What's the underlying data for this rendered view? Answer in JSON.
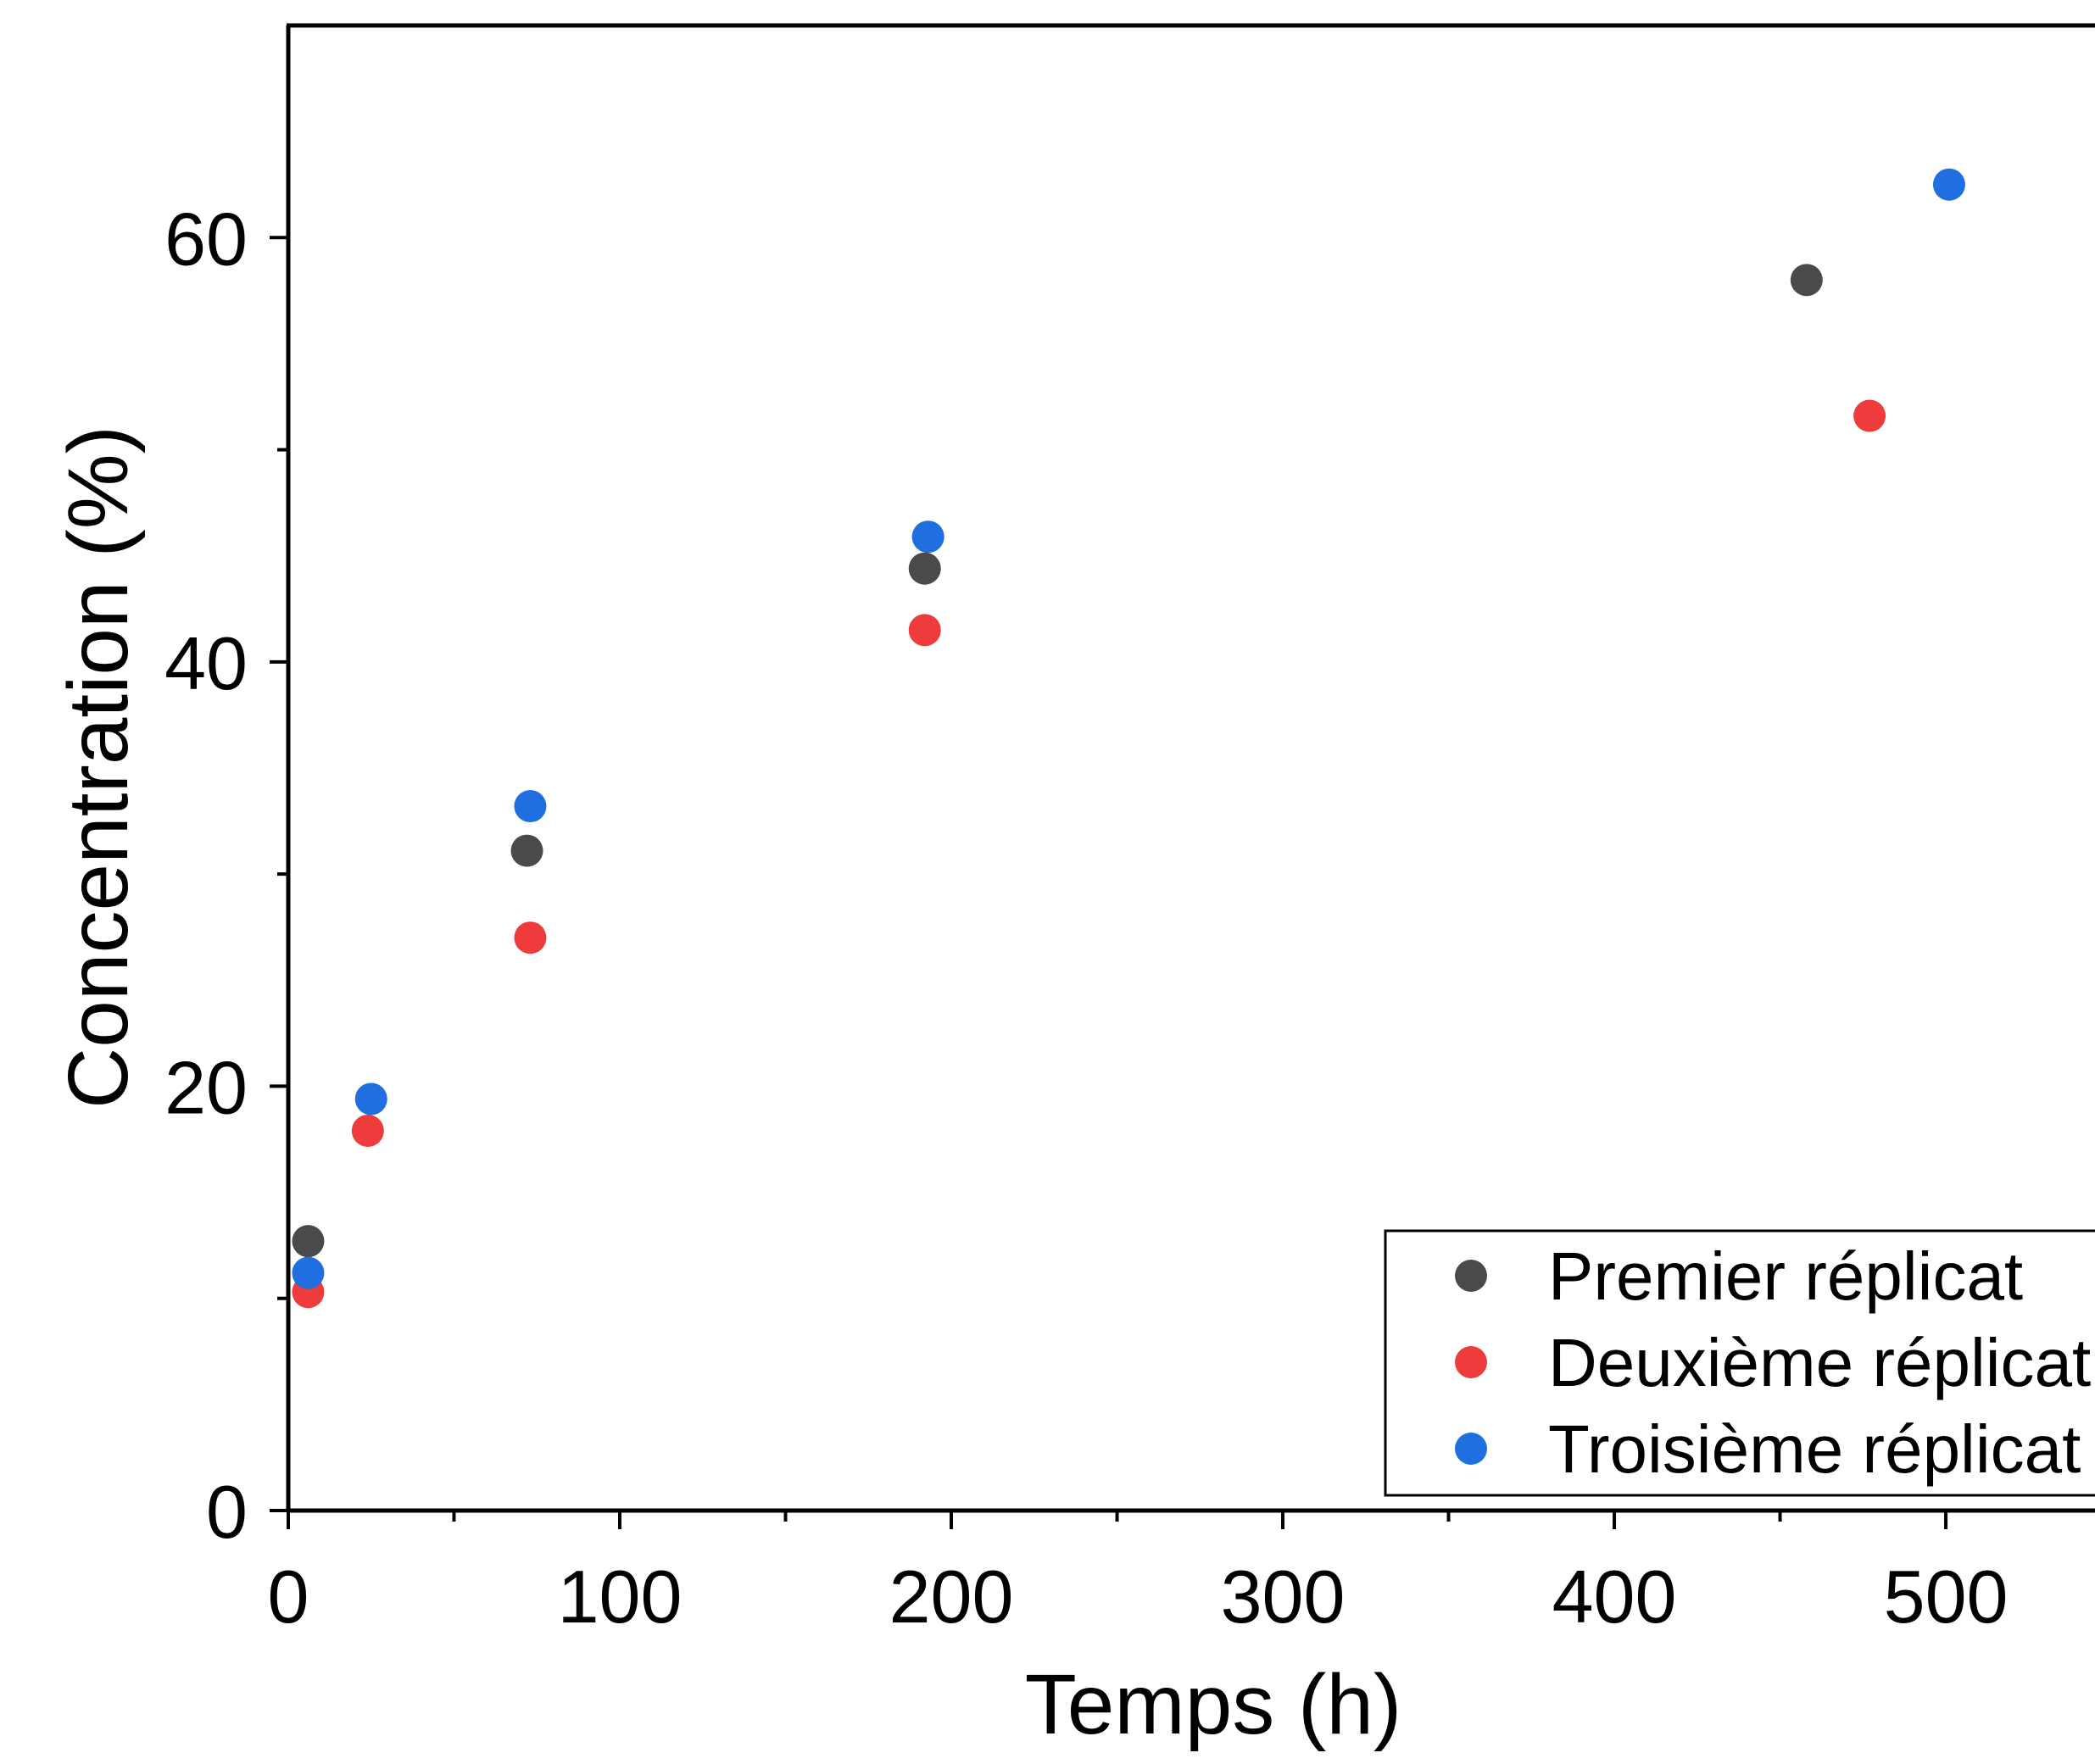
{
  "chart_data": {
    "type": "scatter",
    "title": "",
    "xlabel": "Temps (h)",
    "ylabel": "Concentration (%)",
    "xlim": [
      0,
      545
    ],
    "ylim": [
      0,
      70
    ],
    "x_ticks": [
      0,
      100,
      200,
      300,
      400,
      500
    ],
    "y_ticks": [
      0,
      20,
      40,
      60
    ],
    "x_minor_ticks": [
      50,
      150,
      250,
      350,
      450
    ],
    "y_minor_ticks": [
      10,
      30,
      50
    ],
    "grid": false,
    "legend_position": "bottom-right",
    "series": [
      {
        "name": "Premier réplicat",
        "color": "#4a4a4a",
        "x": [
          6,
          72,
          192,
          458
        ],
        "y": [
          12.7,
          31.1,
          44.4,
          58.0
        ]
      },
      {
        "name": "Deuxième réplicat",
        "color": "#ee3b3b",
        "x": [
          6,
          24,
          73,
          192,
          477
        ],
        "y": [
          10.3,
          17.9,
          27.0,
          41.5,
          51.6
        ]
      },
      {
        "name": "Troisième réplicat",
        "color": "#1f6fe0",
        "x": [
          6,
          25,
          73,
          193,
          501
        ],
        "y": [
          11.2,
          19.4,
          33.2,
          45.9,
          62.5
        ]
      }
    ]
  }
}
